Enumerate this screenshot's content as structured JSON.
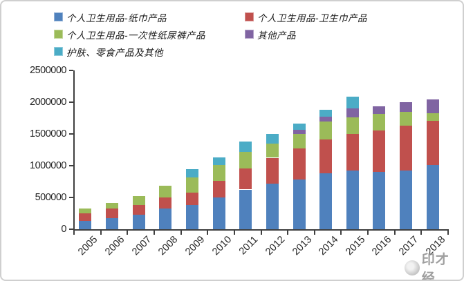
{
  "watermark": {
    "text": "印才经"
  },
  "chart_data": {
    "type": "bar",
    "stacked": true,
    "title": "",
    "xlabel": "",
    "ylabel": "",
    "legend_position": "top",
    "gridlines": false,
    "ylim": [
      0,
      2500000
    ],
    "ytick_step": 500000,
    "yticks": [
      0,
      500000,
      1000000,
      1500000,
      2000000,
      2500000
    ],
    "categories": [
      "2005",
      "2006",
      "2007",
      "2008",
      "2009",
      "2010",
      "2011",
      "2012",
      "2013",
      "2014",
      "2015",
      "2016",
      "2017",
      "2018"
    ],
    "series": [
      {
        "name": "个人卫生用品-纸巾产品",
        "color": "#4F81BD",
        "values": [
          130000,
          170000,
          225000,
          325000,
          380000,
          495000,
          625000,
          715000,
          780000,
          885000,
          925000,
          905000,
          925000,
          1015000
        ]
      },
      {
        "name": "个人卫生用品-卫生巾产品",
        "color": "#C0504D",
        "values": [
          125000,
          155000,
          155000,
          180000,
          200000,
          265000,
          335000,
          410000,
          490000,
          525000,
          580000,
          650000,
          705000,
          690000
        ]
      },
      {
        "name": "个人卫生用品-一次性纸尿裤产品",
        "color": "#9BBB59",
        "values": [
          70000,
          90000,
          145000,
          180000,
          235000,
          255000,
          255000,
          220000,
          235000,
          290000,
          255000,
          255000,
          220000,
          125000
        ]
      },
      {
        "name": "其他产品",
        "color": "#8064A2",
        "values": [
          0,
          0,
          0,
          0,
          0,
          0,
          0,
          0,
          60000,
          70000,
          145000,
          125000,
          145000,
          215000
        ]
      },
      {
        "name": "护肤、零食产品及其他",
        "color": "#4BACC6",
        "values": [
          0,
          0,
          0,
          0,
          130000,
          120000,
          165000,
          155000,
          100000,
          110000,
          180000,
          0,
          0,
          0
        ]
      }
    ]
  }
}
